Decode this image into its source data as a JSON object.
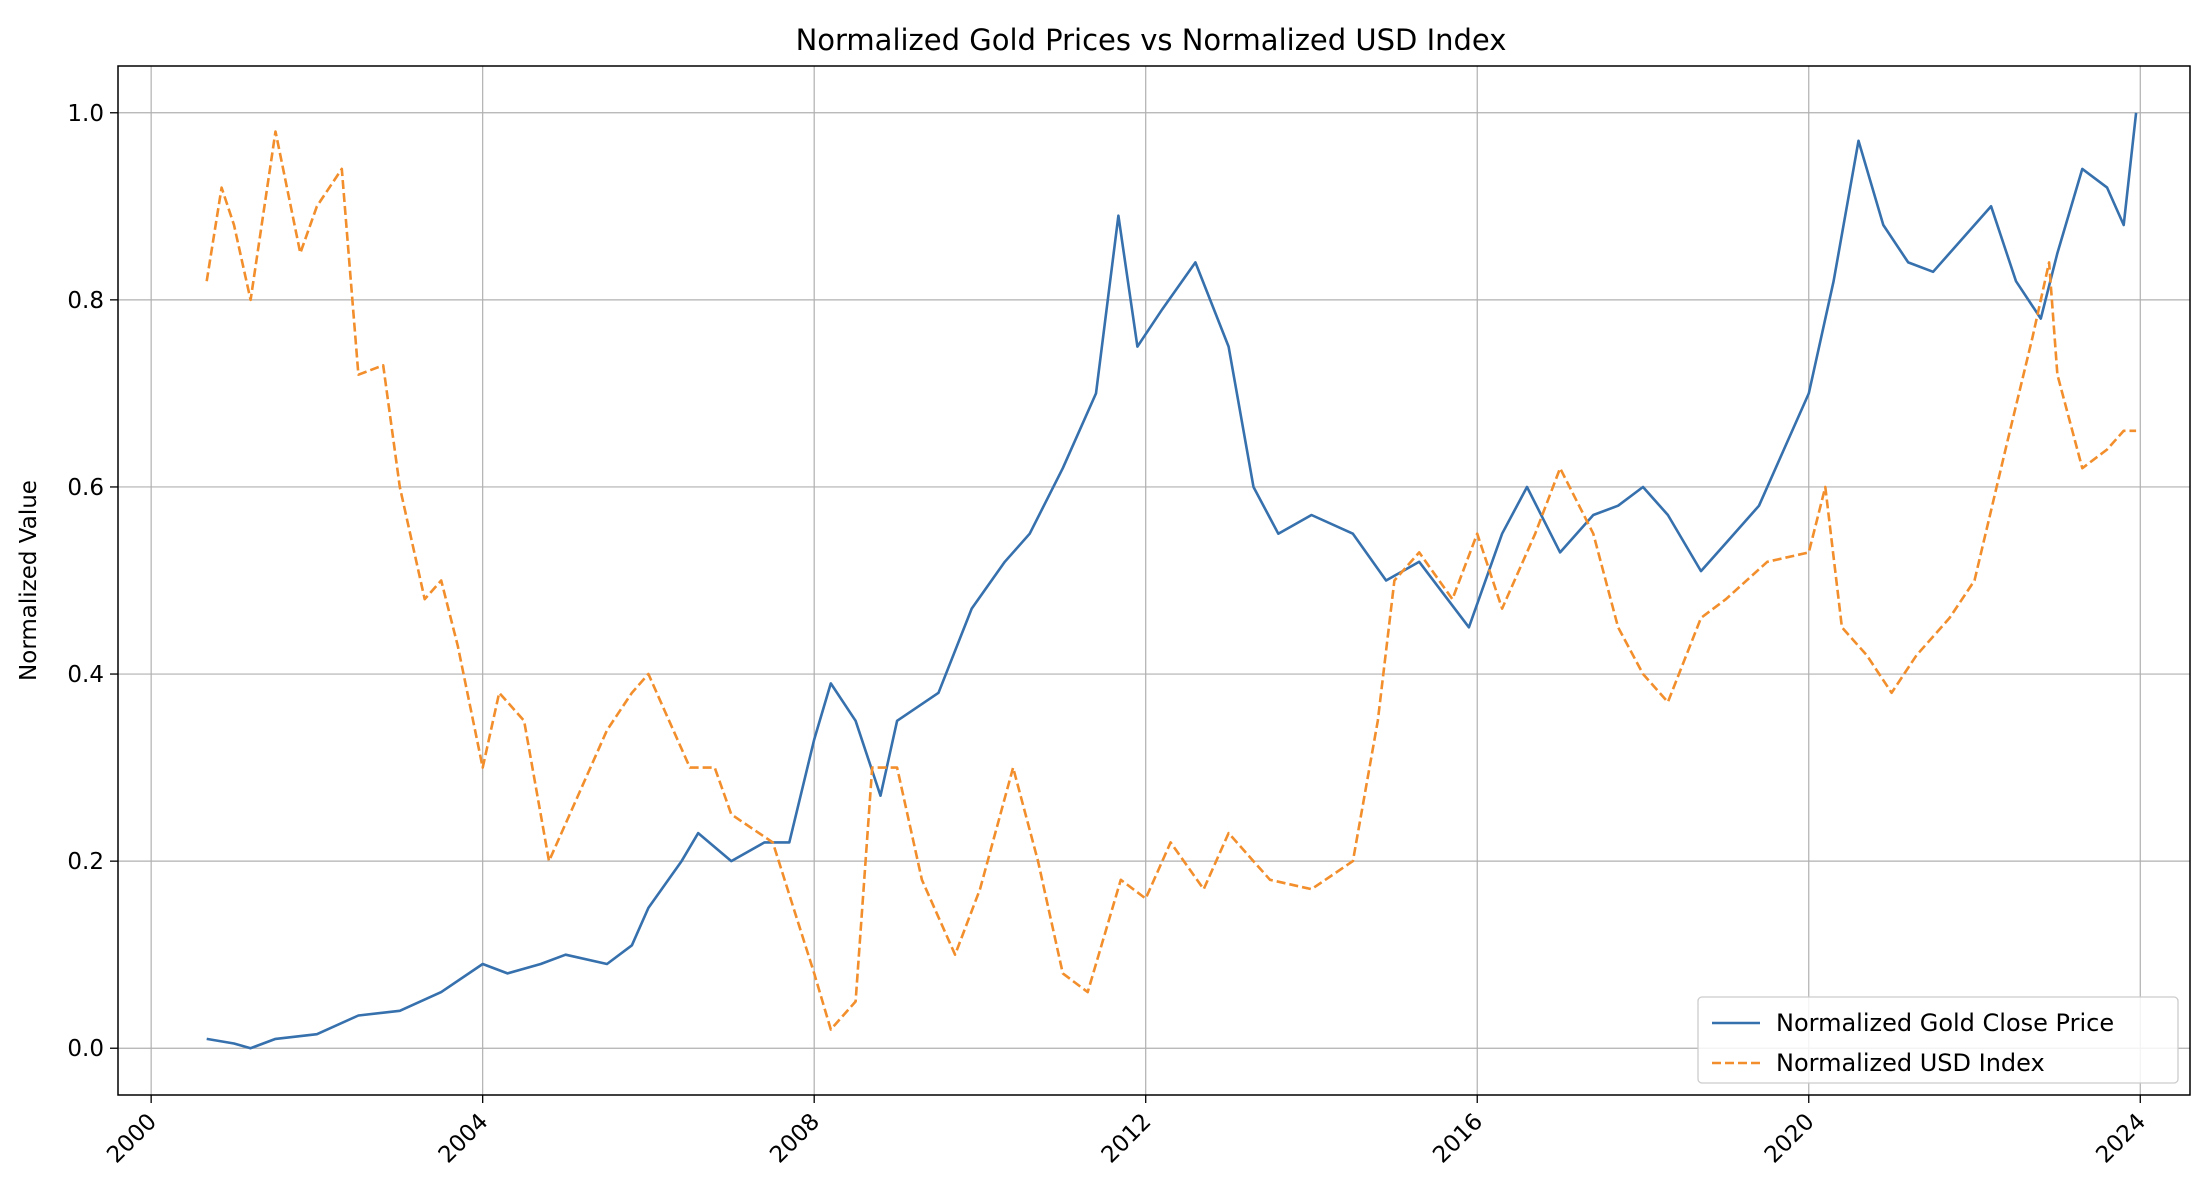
{
  "chart_data": {
    "type": "line",
    "title": "Normalized Gold Prices vs Normalized USD Index",
    "xlabel": "",
    "ylabel": "Normalized Value",
    "xlim": [
      1999.6,
      2024.6
    ],
    "ylim": [
      -0.05,
      1.05
    ],
    "xticks": [
      2000,
      2004,
      2008,
      2012,
      2016,
      2020,
      2024
    ],
    "xtick_labels": [
      "2000",
      "2004",
      "2008",
      "2012",
      "2016",
      "2020",
      "2024"
    ],
    "yticks": [
      0.0,
      0.2,
      0.4,
      0.6,
      0.8,
      1.0
    ],
    "ytick_labels": [
      "0.0",
      "0.2",
      "0.4",
      "0.6",
      "0.8",
      "1.0"
    ],
    "grid": true,
    "legend_position": "lower-right",
    "series": [
      {
        "name": "Normalized Gold Close Price",
        "color": "#3670ad",
        "style": "solid",
        "x": [
          2000.67,
          2001.0,
          2001.2,
          2001.5,
          2002.0,
          2002.5,
          2003.0,
          2003.5,
          2004.0,
          2004.3,
          2004.7,
          2005.0,
          2005.5,
          2005.8,
          2006.0,
          2006.4,
          2006.6,
          2007.0,
          2007.4,
          2007.7,
          2008.0,
          2008.2,
          2008.5,
          2008.8,
          2009.0,
          2009.5,
          2009.9,
          2010.3,
          2010.6,
          2011.0,
          2011.4,
          2011.67,
          2011.9,
          2012.2,
          2012.6,
          2013.0,
          2013.3,
          2013.6,
          2014.0,
          2014.5,
          2014.9,
          2015.3,
          2015.9,
          2016.3,
          2016.6,
          2017.0,
          2017.4,
          2017.7,
          2018.0,
          2018.3,
          2018.7,
          2019.0,
          2019.4,
          2019.7,
          2020.0,
          2020.3,
          2020.6,
          2020.9,
          2021.2,
          2021.5,
          2022.0,
          2022.2,
          2022.5,
          2022.8,
          2023.0,
          2023.3,
          2023.6,
          2023.8,
          2023.95
        ],
        "values": [
          0.01,
          0.005,
          0.0,
          0.01,
          0.015,
          0.035,
          0.04,
          0.06,
          0.09,
          0.08,
          0.09,
          0.1,
          0.09,
          0.11,
          0.15,
          0.2,
          0.23,
          0.2,
          0.22,
          0.22,
          0.33,
          0.39,
          0.35,
          0.27,
          0.35,
          0.38,
          0.47,
          0.52,
          0.55,
          0.62,
          0.7,
          0.89,
          0.75,
          0.79,
          0.84,
          0.75,
          0.6,
          0.55,
          0.57,
          0.55,
          0.5,
          0.52,
          0.45,
          0.55,
          0.6,
          0.53,
          0.57,
          0.58,
          0.6,
          0.57,
          0.51,
          0.54,
          0.58,
          0.64,
          0.7,
          0.82,
          0.97,
          0.88,
          0.84,
          0.83,
          0.88,
          0.9,
          0.82,
          0.78,
          0.85,
          0.94,
          0.92,
          0.88,
          1.0
        ]
      },
      {
        "name": "Normalized USD Index",
        "color": "#f28e2b",
        "style": "dashed",
        "x": [
          2000.67,
          2000.85,
          2001.0,
          2001.2,
          2001.5,
          2001.8,
          2002.0,
          2002.3,
          2002.5,
          2002.8,
          2003.0,
          2003.3,
          2003.5,
          2003.7,
          2004.0,
          2004.2,
          2004.5,
          2004.8,
          2005.0,
          2005.5,
          2005.8,
          2006.0,
          2006.2,
          2006.5,
          2006.8,
          2007.0,
          2007.5,
          2008.0,
          2008.2,
          2008.5,
          2008.7,
          2009.0,
          2009.3,
          2009.7,
          2010.0,
          2010.4,
          2010.7,
          2011.0,
          2011.3,
          2011.7,
          2012.0,
          2012.3,
          2012.7,
          2013.0,
          2013.5,
          2014.0,
          2014.5,
          2014.8,
          2015.0,
          2015.3,
          2015.7,
          2016.0,
          2016.3,
          2016.7,
          2017.0,
          2017.4,
          2017.7,
          2018.0,
          2018.3,
          2018.7,
          2019.0,
          2019.5,
          2020.0,
          2020.2,
          2020.4,
          2020.7,
          2021.0,
          2021.3,
          2021.7,
          2022.0,
          2022.4,
          2022.7,
          2022.9,
          2023.0,
          2023.3,
          2023.6,
          2023.8,
          2023.95
        ],
        "values": [
          0.82,
          0.92,
          0.88,
          0.8,
          0.98,
          0.85,
          0.9,
          0.94,
          0.72,
          0.73,
          0.6,
          0.48,
          0.5,
          0.43,
          0.3,
          0.38,
          0.35,
          0.2,
          0.24,
          0.34,
          0.38,
          0.4,
          0.36,
          0.3,
          0.3,
          0.25,
          0.22,
          0.08,
          0.02,
          0.05,
          0.3,
          0.3,
          0.18,
          0.1,
          0.17,
          0.3,
          0.2,
          0.08,
          0.06,
          0.18,
          0.16,
          0.22,
          0.17,
          0.23,
          0.18,
          0.17,
          0.2,
          0.35,
          0.5,
          0.53,
          0.48,
          0.55,
          0.47,
          0.55,
          0.62,
          0.55,
          0.45,
          0.4,
          0.37,
          0.46,
          0.48,
          0.52,
          0.53,
          0.6,
          0.45,
          0.42,
          0.38,
          0.42,
          0.46,
          0.5,
          0.65,
          0.76,
          0.84,
          0.72,
          0.62,
          0.64,
          0.66,
          0.66
        ]
      }
    ]
  }
}
